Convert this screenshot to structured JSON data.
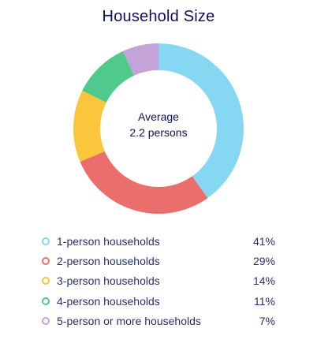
{
  "title": "Household Size",
  "center": {
    "line1": "Average",
    "line2": "2.2 persons"
  },
  "chart_data": {
    "type": "pie",
    "title": "Household Size",
    "center_label": [
      "Average",
      "2.2 persons"
    ],
    "categories": [
      "1-person households",
      "2-person households",
      "3-person households",
      "4-person households",
      "5-person or more households"
    ],
    "values": [
      41,
      29,
      14,
      11,
      7
    ],
    "value_labels": [
      "41%",
      "29%",
      "14%",
      "11%",
      "7%"
    ],
    "colors": [
      "#86d8f2",
      "#ea6e6c",
      "#f9c63c",
      "#4fc98c",
      "#c4a4d8"
    ],
    "donut": true,
    "legend_position": "bottom"
  }
}
